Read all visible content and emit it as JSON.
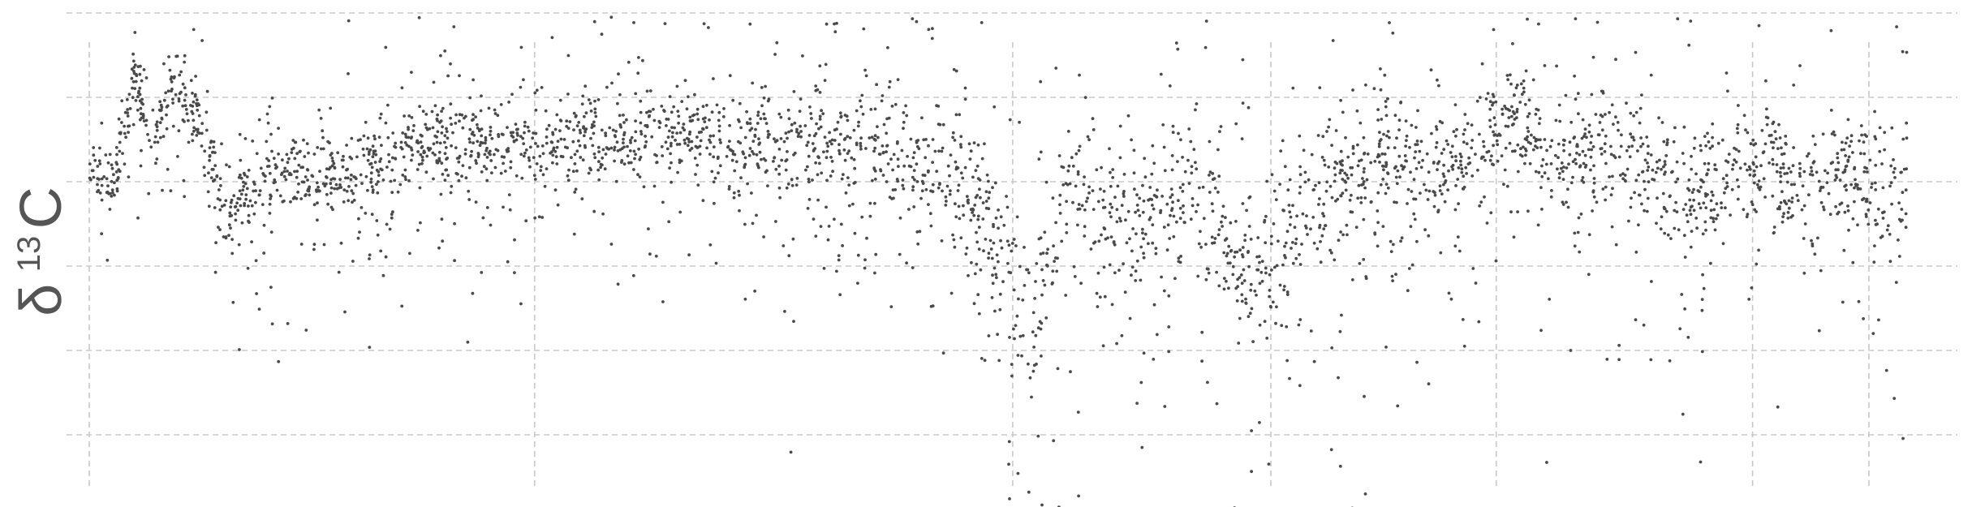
{
  "chart_data": {
    "type": "scatter",
    "ylabel": {
      "symbol": "δ",
      "superscript": "13",
      "element": "C"
    },
    "x_range": [
      0,
      1000
    ],
    "y_range": [
      -8,
      4
    ],
    "grid": true,
    "x_gridlines": [
      0,
      245,
      508,
      650,
      774,
      915,
      979
    ],
    "y_gridlines": [
      -6,
      -4,
      -2,
      0,
      2,
      4
    ],
    "series": [
      {
        "color": "#4a4a4a",
        "trend": [
          [
            0,
            0.4
          ],
          [
            12,
            -0.2
          ],
          [
            25,
            2.6
          ],
          [
            35,
            0.8
          ],
          [
            48,
            2.4
          ],
          [
            65,
            1.0
          ],
          [
            75,
            -0.8
          ],
          [
            95,
            0.0
          ],
          [
            110,
            0.3
          ],
          [
            130,
            0.1
          ],
          [
            150,
            0.2
          ],
          [
            175,
            0.8
          ],
          [
            200,
            1.0
          ],
          [
            230,
            0.9
          ],
          [
            245,
            0.9
          ],
          [
            260,
            1.0
          ],
          [
            300,
            1.1
          ],
          [
            340,
            1.1
          ],
          [
            380,
            1.0
          ],
          [
            420,
            0.9
          ],
          [
            450,
            0.6
          ],
          [
            480,
            0.2
          ],
          [
            495,
            -1.2
          ],
          [
            508,
            -2.5
          ],
          [
            520,
            -3.4
          ],
          [
            540,
            0.0
          ],
          [
            560,
            -0.6
          ],
          [
            580,
            -1.0
          ],
          [
            600,
            -0.4
          ],
          [
            620,
            -0.8
          ],
          [
            630,
            -2.0
          ],
          [
            650,
            -2.0
          ],
          [
            670,
            -0.2
          ],
          [
            690,
            0.0
          ],
          [
            710,
            0.8
          ],
          [
            730,
            0.2
          ],
          [
            760,
            0.6
          ],
          [
            780,
            1.6
          ],
          [
            800,
            0.7
          ],
          [
            820,
            0.5
          ],
          [
            850,
            0.6
          ],
          [
            880,
            -0.3
          ],
          [
            900,
            0.2
          ],
          [
            920,
            0.6
          ],
          [
            940,
            -0.2
          ],
          [
            960,
            0.4
          ],
          [
            980,
            -0.4
          ],
          [
            1000,
            -0.2
          ]
        ],
        "spread": [
          [
            0,
            0.6
          ],
          [
            60,
            0.9
          ],
          [
            90,
            1.0
          ],
          [
            240,
            1.0
          ],
          [
            400,
            1.3
          ],
          [
            500,
            2.2
          ],
          [
            560,
            1.9
          ],
          [
            650,
            1.9
          ],
          [
            760,
            1.6
          ],
          [
            850,
            1.6
          ],
          [
            1000,
            1.7
          ]
        ],
        "point_count": 3600,
        "seed": 1337
      }
    ]
  }
}
